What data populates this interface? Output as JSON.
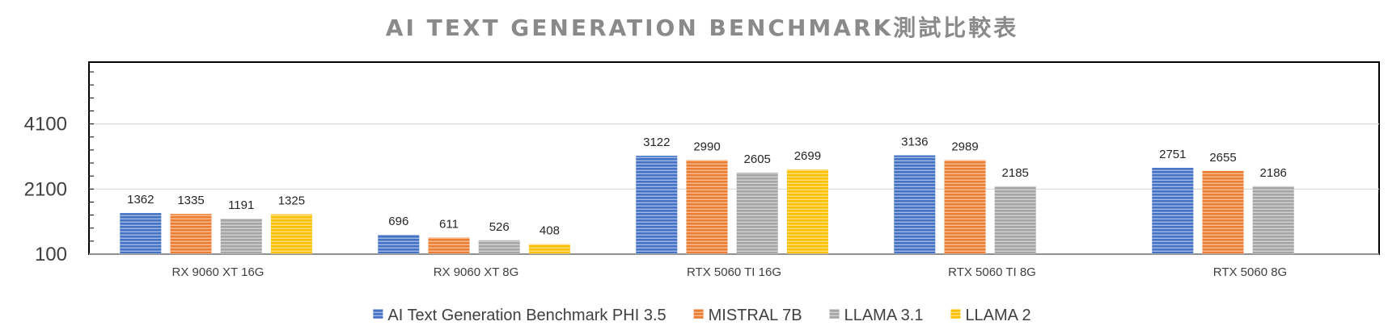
{
  "chart_data": {
    "type": "bar",
    "title": "AI TEXT GENERATION BENCHMARK測試比較表",
    "categories": [
      "RX 9060 XT 16G",
      "RX 9060 XT 8G",
      "RTX 5060 TI 16G",
      "RTX 5060 TI 8G",
      "RTX 5060 8G"
    ],
    "series": [
      {
        "name": "AI Text Generation Benchmark PHI 3.5",
        "color": "#4472C4",
        "values": [
          1362,
          696,
          3122,
          3136,
          2751
        ]
      },
      {
        "name": "MISTRAL 7B",
        "color": "#ED7D31",
        "values": [
          1335,
          611,
          2990,
          2989,
          2655
        ]
      },
      {
        "name": "LLAMA 3.1",
        "color": "#A5A5A5",
        "values": [
          1191,
          526,
          2605,
          2185,
          2186
        ]
      },
      {
        "name": "LLAMA 2",
        "color": "#FFC000",
        "values": [
          1325,
          408,
          2699,
          null,
          null
        ]
      }
    ],
    "y_tick_labels": [
      "100",
      "2100",
      "4100"
    ],
    "y_ticks": [
      100,
      2100,
      4100
    ],
    "ylim": [
      100,
      6000
    ],
    "xlabel": "",
    "ylabel": "",
    "grid": true,
    "legend_position": "bottom"
  }
}
